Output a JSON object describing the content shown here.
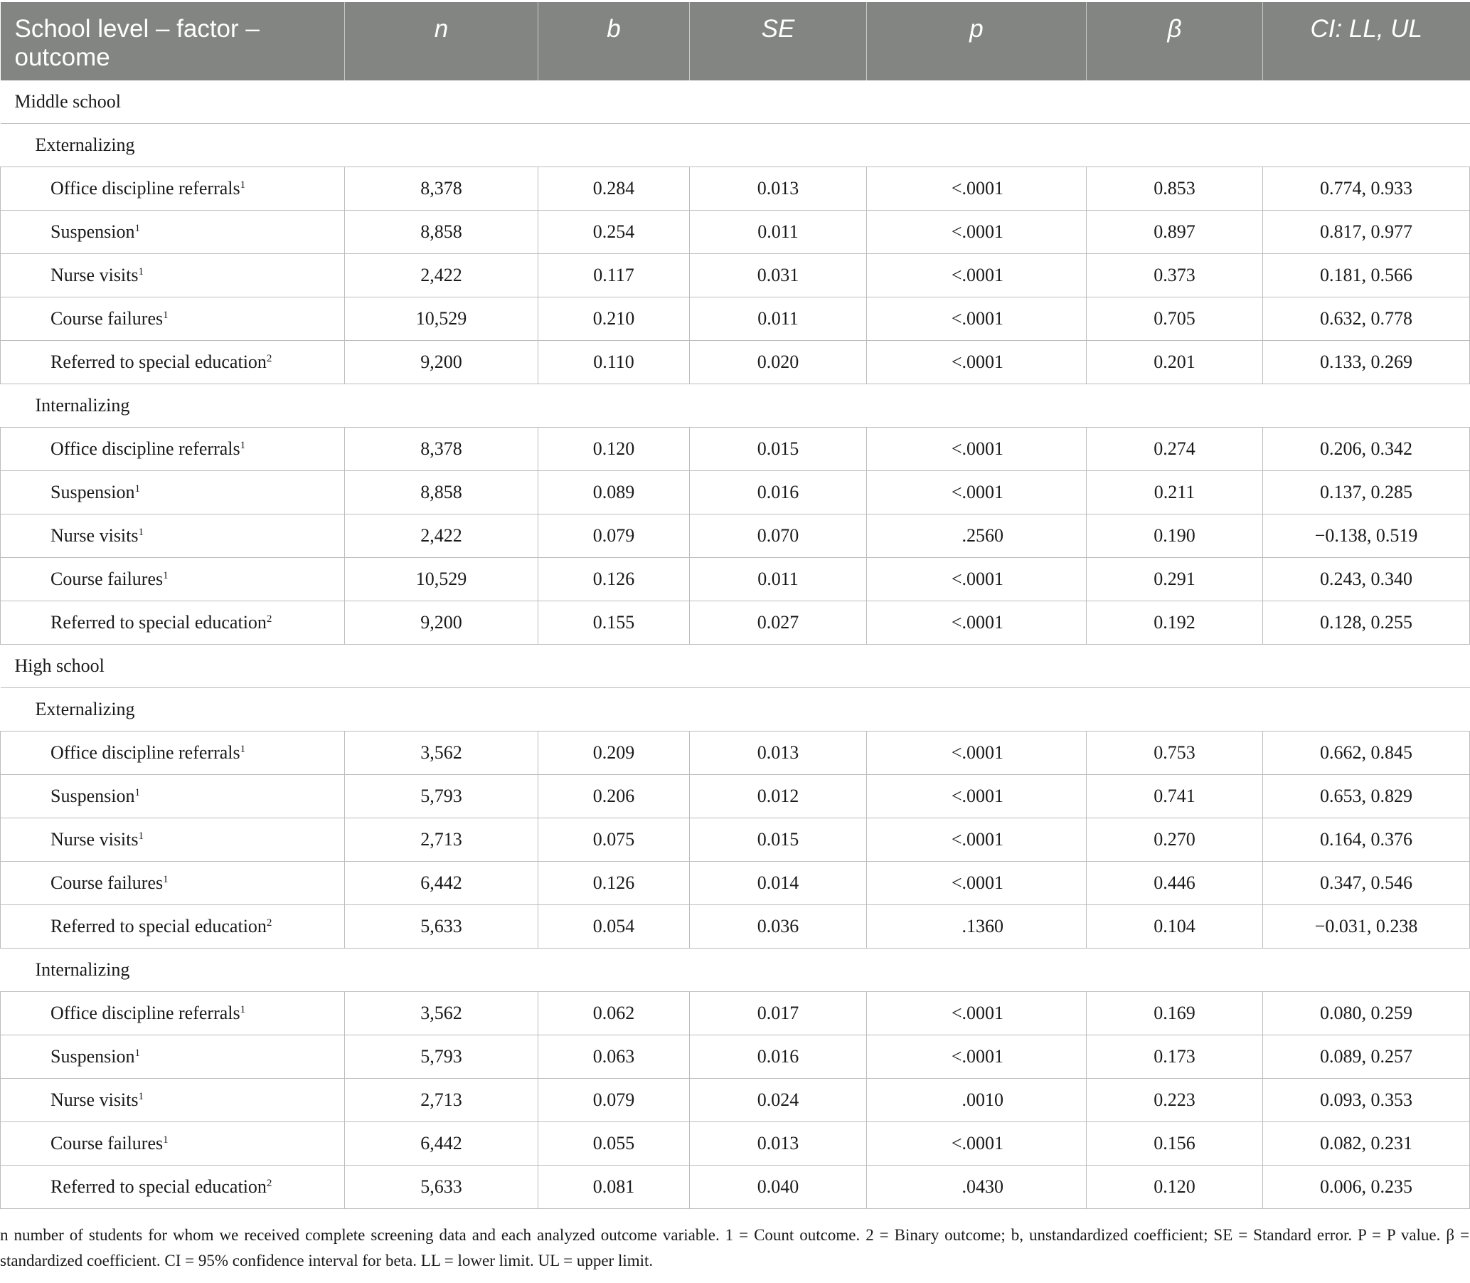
{
  "table": {
    "headers": [
      "School level – factor – outcome",
      "n",
      "b",
      "SE",
      "p",
      "β",
      "CI: LL, UL"
    ],
    "rows": [
      {
        "kind": "level",
        "label": "Middle school"
      },
      {
        "kind": "factor",
        "label": "Externalizing"
      },
      {
        "kind": "data",
        "label": "Office discipline referrals",
        "sup": "1",
        "cells": [
          "8,378",
          "0.284",
          "0.013",
          "<.0001",
          "0.853",
          "0.774, 0.933"
        ]
      },
      {
        "kind": "data",
        "label": "Suspension",
        "sup": "1",
        "cells": [
          "8,858",
          "0.254",
          "0.011",
          "<.0001",
          "0.897",
          "0.817, 0.977"
        ]
      },
      {
        "kind": "data",
        "label": "Nurse visits",
        "sup": "1",
        "cells": [
          "2,422",
          "0.117",
          "0.031",
          "<.0001",
          "0.373",
          "0.181, 0.566"
        ]
      },
      {
        "kind": "data",
        "label": "Course failures",
        "sup": "1",
        "cells": [
          "10,529",
          "0.210",
          "0.011",
          "<.0001",
          "0.705",
          "0.632, 0.778"
        ]
      },
      {
        "kind": "data",
        "label": "Referred to special education",
        "sup": "2",
        "cells": [
          "9,200",
          "0.110",
          "0.020",
          "<.0001",
          "0.201",
          "0.133, 0.269"
        ]
      },
      {
        "kind": "factor",
        "label": "Internalizing"
      },
      {
        "kind": "data",
        "label": "Office discipline referrals",
        "sup": "1",
        "cells": [
          "8,378",
          "0.120",
          "0.015",
          "<.0001",
          "0.274",
          "0.206, 0.342"
        ]
      },
      {
        "kind": "data",
        "label": "Suspension",
        "sup": "1",
        "cells": [
          "8,858",
          "0.089",
          "0.016",
          "<.0001",
          "0.211",
          "0.137, 0.285"
        ]
      },
      {
        "kind": "data",
        "label": "Nurse visits",
        "sup": "1",
        "cells": [
          "2,422",
          "0.079",
          "0.070",
          ".2560",
          "0.190",
          "−0.138, 0.519"
        ]
      },
      {
        "kind": "data",
        "label": "Course failures",
        "sup": "1",
        "cells": [
          "10,529",
          "0.126",
          "0.011",
          "<.0001",
          "0.291",
          "0.243, 0.340"
        ]
      },
      {
        "kind": "data",
        "label": "Referred to special education",
        "sup": "2",
        "cells": [
          "9,200",
          "0.155",
          "0.027",
          "<.0001",
          "0.192",
          "0.128, 0.255"
        ]
      },
      {
        "kind": "level",
        "label": "High school"
      },
      {
        "kind": "factor",
        "label": "Externalizing"
      },
      {
        "kind": "data",
        "label": "Office discipline referrals",
        "sup": "1",
        "cells": [
          "3,562",
          "0.209",
          "0.013",
          "<.0001",
          "0.753",
          "0.662, 0.845"
        ]
      },
      {
        "kind": "data",
        "label": "Suspension",
        "sup": "1",
        "cells": [
          "5,793",
          "0.206",
          "0.012",
          "<.0001",
          "0.741",
          "0.653, 0.829"
        ]
      },
      {
        "kind": "data",
        "label": "Nurse visits",
        "sup": "1",
        "cells": [
          "2,713",
          "0.075",
          "0.015",
          "<.0001",
          "0.270",
          "0.164, 0.376"
        ]
      },
      {
        "kind": "data",
        "label": "Course failures",
        "sup": "1",
        "cells": [
          "6,442",
          "0.126",
          "0.014",
          "<.0001",
          "0.446",
          "0.347, 0.546"
        ]
      },
      {
        "kind": "data",
        "label": "Referred to special education",
        "sup": "2",
        "cells": [
          "5,633",
          "0.054",
          "0.036",
          ".1360",
          "0.104",
          "−0.031, 0.238"
        ]
      },
      {
        "kind": "factor",
        "label": "Internalizing"
      },
      {
        "kind": "data",
        "label": "Office discipline referrals",
        "sup": "1",
        "cells": [
          "3,562",
          "0.062",
          "0.017",
          "<.0001",
          "0.169",
          "0.080, 0.259"
        ]
      },
      {
        "kind": "data",
        "label": "Suspension",
        "sup": "1",
        "cells": [
          "5,793",
          "0.063",
          "0.016",
          "<.0001",
          "0.173",
          "0.089, 0.257"
        ]
      },
      {
        "kind": "data",
        "label": "Nurse visits",
        "sup": "1",
        "cells": [
          "2,713",
          "0.079",
          "0.024",
          ".0010",
          "0.223",
          "0.093, 0.353"
        ]
      },
      {
        "kind": "data",
        "label": "Course failures",
        "sup": "1",
        "cells": [
          "6,442",
          "0.055",
          "0.013",
          "<.0001",
          "0.156",
          "0.082, 0.231"
        ]
      },
      {
        "kind": "data",
        "label": "Referred to special education",
        "sup": "2",
        "cells": [
          "5,633",
          "0.081",
          "0.040",
          ".0430",
          "0.120",
          "0.006, 0.235"
        ]
      }
    ]
  },
  "footnote": "n number of students for whom we received complete screening data and each analyzed outcome variable. 1 = Count outcome. 2 = Binary outcome; b, unstandardized coefficient; SE = Standard error. P = P value. β = standardized coefficient. CI = 95% confidence interval for beta. LL = lower limit. UL = upper limit."
}
